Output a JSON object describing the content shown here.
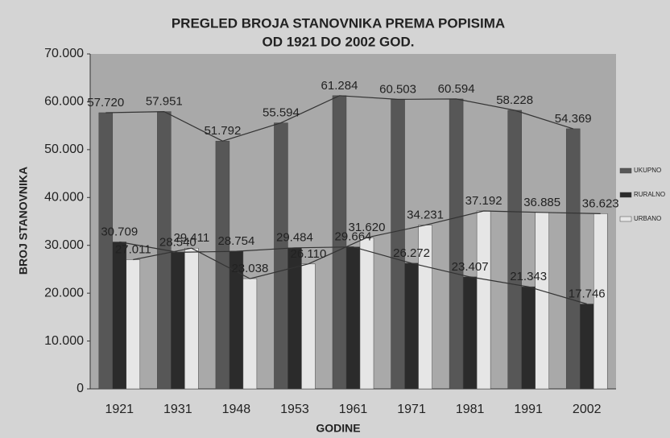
{
  "chart_data": {
    "type": "bar",
    "title": "PREGLED BROJA STANOVNIKA PREMA POPISIMA",
    "subtitle": "OD 1921 DO 2002 GOD.",
    "x_label": "GODINE",
    "y_label": "BROJ STANOVNIKA",
    "categories": [
      "1921",
      "1931",
      "1948",
      "1953",
      "1961",
      "1971",
      "1981",
      "1991",
      "2002"
    ],
    "series": [
      {
        "name": "UKUPNO",
        "color": "#575757",
        "values": [
          57720,
          57951,
          51792,
          55594,
          61284,
          60503,
          60594,
          58228,
          54369
        ],
        "value_labels": [
          "57.720",
          "57.951",
          "51.792",
          "55.594",
          "61.284",
          "60.503",
          "60.594",
          "58.228",
          "54.369"
        ]
      },
      {
        "name": "RURALNO",
        "color": "#2b2b2b",
        "values": [
          30709,
          28540,
          28754,
          29484,
          29664,
          26272,
          23407,
          21343,
          17746
        ],
        "value_labels": [
          "30.709",
          "28.540",
          "28.754",
          "29.484",
          "29.664",
          "26.272",
          "23.407",
          "21.343",
          "17.746"
        ]
      },
      {
        "name": "URBANO",
        "color": "#e6e6e6",
        "values": [
          27011,
          29411,
          23038,
          26110,
          31620,
          34231,
          37192,
          36885,
          36623
        ],
        "value_labels": [
          "27.011",
          "29.411",
          "23.038",
          "26.110",
          "31.620",
          "34.231",
          "37.192",
          "36.885",
          "36.623"
        ]
      }
    ],
    "ylim": [
      0,
      70000
    ],
    "yticks": [
      0,
      {
        "value": 10000,
        "label": "10.000"
      },
      {
        "value": 20000,
        "label": "20.000"
      },
      {
        "value": 30000,
        "label": "30.000"
      },
      {
        "value": 40000,
        "label": "40.000"
      },
      {
        "value": 50000,
        "label": "50.000"
      },
      {
        "value": 60000,
        "label": "60.000"
      },
      {
        "value": 70000,
        "label": "70.000"
      }
    ],
    "legend": "right"
  }
}
